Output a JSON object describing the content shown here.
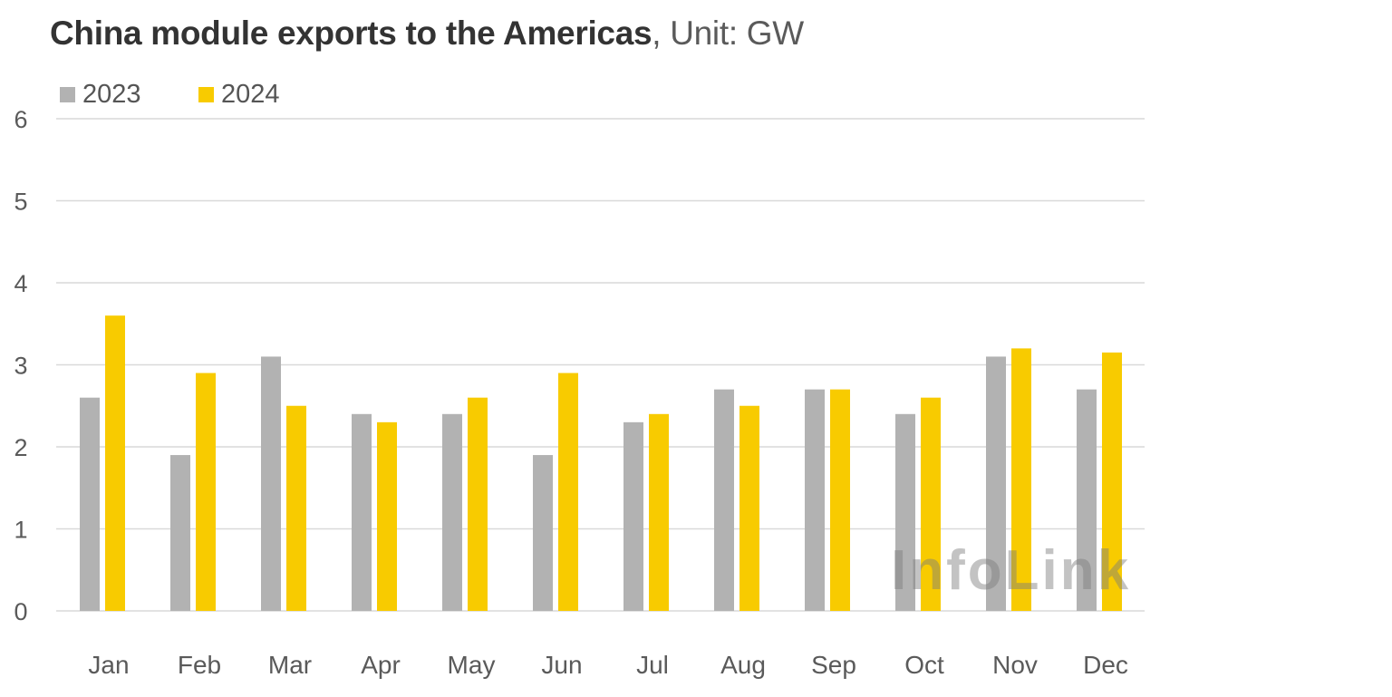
{
  "title": {
    "bold": "China module exports to the Americas",
    "rest": ", Unit: GW"
  },
  "watermark": "InfoLink",
  "colors": {
    "series_2023": "#b2b2b2",
    "series_2024": "#f8cb00",
    "grid": "#d9d9d9",
    "tick_text": "#5a5a5a"
  },
  "chart_data": {
    "type": "bar",
    "title": "China module exports to the Americas, Unit: GW",
    "xlabel": "",
    "ylabel": "",
    "categories": [
      "Jan",
      "Feb",
      "Mar",
      "Apr",
      "May",
      "Jun",
      "Jul",
      "Aug",
      "Sep",
      "Oct",
      "Nov",
      "Dec"
    ],
    "series": [
      {
        "name": "2023",
        "color": "#b2b2b2",
        "values": [
          2.6,
          1.9,
          3.1,
          2.4,
          2.4,
          1.9,
          2.3,
          2.7,
          2.7,
          2.4,
          3.1,
          2.7
        ]
      },
      {
        "name": "2024",
        "color": "#f8cb00",
        "values": [
          3.6,
          2.9,
          2.5,
          2.3,
          2.6,
          2.9,
          2.4,
          2.5,
          2.7,
          2.6,
          3.2,
          3.15
        ]
      }
    ],
    "ylim": [
      0,
      6
    ],
    "yticks": [
      0,
      1,
      2,
      3,
      4,
      5,
      6
    ],
    "grid": true,
    "legend_position": "top-left"
  }
}
